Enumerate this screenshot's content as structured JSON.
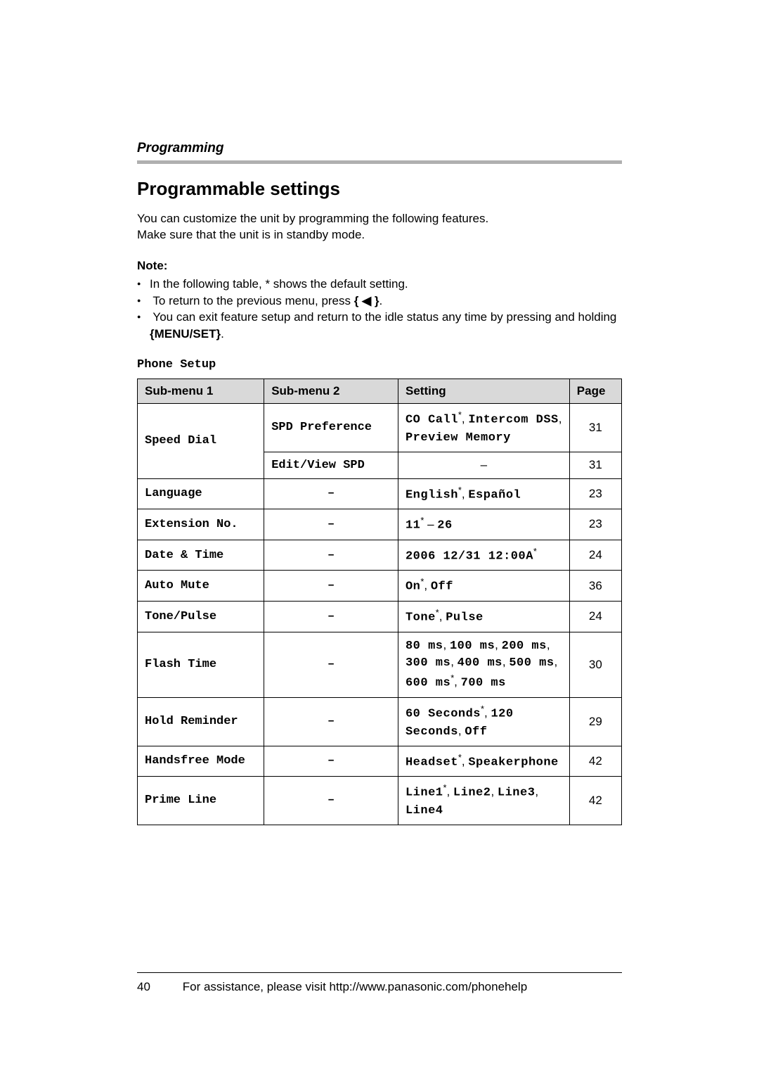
{
  "header": {
    "section": "Programming"
  },
  "title": "Programmable settings",
  "intro": {
    "line1": "You can customize the unit by programming the following features.",
    "line2": "Make sure that the unit is in standby mode."
  },
  "note": {
    "label": "Note:",
    "b1": "In the following table, * shows the default setting.",
    "b2_pre": "To return to the previous menu, press ",
    "b2_key": "{ ◀ }",
    "b2_post": ".",
    "b3_pre": "You can exit feature setup and return to the idle status any time by pressing and holding ",
    "b3_key": "{MENU/SET}",
    "b3_post": "."
  },
  "table": {
    "title": "Phone Setup",
    "headers": {
      "c1": "Sub-menu 1",
      "c2": "Sub-menu 2",
      "c3": "Setting",
      "c4": "Page"
    },
    "rows": [
      {
        "sub1": "Speed Dial",
        "sub1_rowspan": 2,
        "sub2": "SPD Preference",
        "setting_html": "<span class='mono'>CO Call</span><sup class='ast'>*</sup>, <span class='mono'>Intercom DSS</span>, <span class='mono'>Preview Memory</span>",
        "page": "31"
      },
      {
        "sub2": "Edit/View SPD",
        "setting_html": "–",
        "setting_center": true,
        "page": "31"
      },
      {
        "sub1": "Language",
        "sub2": "–",
        "sub2_center": true,
        "setting_html": "<span class='mono'>English</span><sup class='ast'>*</sup>, <span class='mono'>Español</span>",
        "page": "23"
      },
      {
        "sub1": "Extension No.",
        "sub2": "–",
        "sub2_center": true,
        "setting_html": "<span class='mono'>11</span><sup class='ast'>*</sup> – <span class='mono'>26</span>",
        "page": "23"
      },
      {
        "sub1": "Date & Time",
        "sub2": "–",
        "sub2_center": true,
        "setting_html": "<span class='mono'>2006 12/31 12:00A</span><sup class='ast'>*</sup>",
        "page": "24"
      },
      {
        "sub1": "Auto Mute",
        "sub2": "–",
        "sub2_center": true,
        "setting_html": "<span class='mono'>On</span><sup class='ast'>*</sup>, <span class='mono'>Off</span>",
        "page": "36"
      },
      {
        "sub1": "Tone/Pulse",
        "sub2": "–",
        "sub2_center": true,
        "setting_html": "<span class='mono'>Tone</span><sup class='ast'>*</sup>, <span class='mono'>Pulse</span>",
        "page": "24"
      },
      {
        "sub1": "Flash Time",
        "sub2": "–",
        "sub2_center": true,
        "setting_html": "<span class='mono'>80 ms</span>, <span class='mono'>100 ms</span>, <span class='mono'>200 ms</span>, <span class='mono'>300 ms</span>, <span class='mono'>400 ms</span>, <span class='mono'>500 ms</span>, <span class='mono'>600 ms</span><sup class='ast'>*</sup>, <span class='mono'>700 ms</span>",
        "page": "30"
      },
      {
        "sub1": "Hold Reminder",
        "sub2": "–",
        "sub2_center": true,
        "setting_html": "<span class='mono'>60 Seconds</span><sup class='ast'>*</sup>, <span class='mono'>120 Seconds</span>, <span class='mono'>Off</span>",
        "page": "29"
      },
      {
        "sub1": "Handsfree Mode",
        "sub2": "–",
        "sub2_center": true,
        "setting_html": "<span class='mono'>Headset</span><sup class='ast'>*</sup>, <span class='mono'>Speakerphone</span>",
        "page": "42"
      },
      {
        "sub1": "Prime Line",
        "sub2": "–",
        "sub2_center": true,
        "setting_html": "<span class='mono'>Line1</span><sup class='ast'>*</sup>, <span class='mono'>Line2</span>, <span class='mono'>Line3</span>, <span class='mono'>Line4</span>",
        "page": "42"
      }
    ]
  },
  "footer": {
    "page_number": "40",
    "assist": "For assistance, please visit http://www.panasonic.com/phonehelp"
  }
}
